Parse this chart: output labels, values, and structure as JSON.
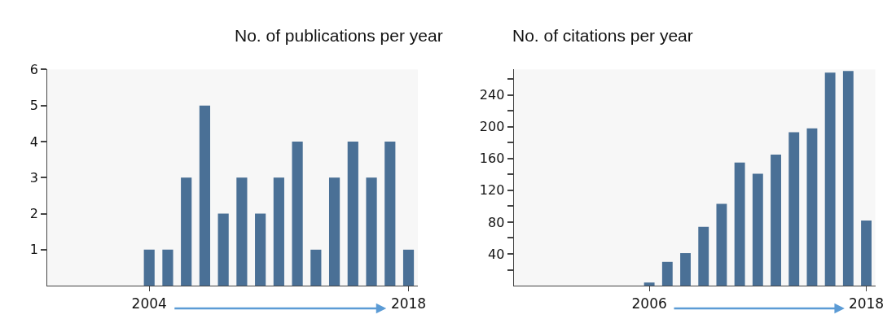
{
  "chart_data": [
    {
      "type": "bar",
      "title": "No. of publications per year",
      "x": [
        2004,
        2005,
        2006,
        2007,
        2008,
        2009,
        2010,
        2011,
        2012,
        2013,
        2014,
        2015,
        2016,
        2017,
        2018
      ],
      "values": [
        1,
        1,
        3,
        5,
        2,
        3,
        2,
        3,
        4,
        1,
        3,
        4,
        3,
        4,
        1
      ],
      "color": "#4a7096",
      "xlim": [
        1998.5,
        2018.5
      ],
      "xticks": [
        2004,
        2018
      ],
      "ylim": [
        0,
        6
      ],
      "yticks": [
        1,
        2,
        3,
        4,
        5,
        6
      ]
    },
    {
      "type": "bar",
      "title": "No. of citations per year",
      "x": [
        2006,
        2007,
        2008,
        2009,
        2010,
        2011,
        2012,
        2013,
        2014,
        2015,
        2016,
        2017,
        2018
      ],
      "values": [
        4,
        30,
        41,
        74,
        103,
        155,
        141,
        165,
        193,
        198,
        268,
        270,
        82
      ],
      "color": "#4a7096",
      "xlim": [
        1998.5,
        2018.5
      ],
      "xticks": [
        2006,
        2018
      ],
      "ylim": [
        0,
        272
      ],
      "yticks": [
        {
          "value": 20,
          "label": null
        },
        40,
        {
          "value": 60,
          "label": null
        },
        80,
        {
          "value": 100,
          "label": null
        },
        120,
        {
          "value": 140,
          "label": null
        },
        160,
        {
          "value": 180,
          "label": null
        },
        200,
        {
          "value": 220,
          "label": null
        },
        240,
        {
          "value": 260,
          "label": null
        }
      ]
    }
  ]
}
